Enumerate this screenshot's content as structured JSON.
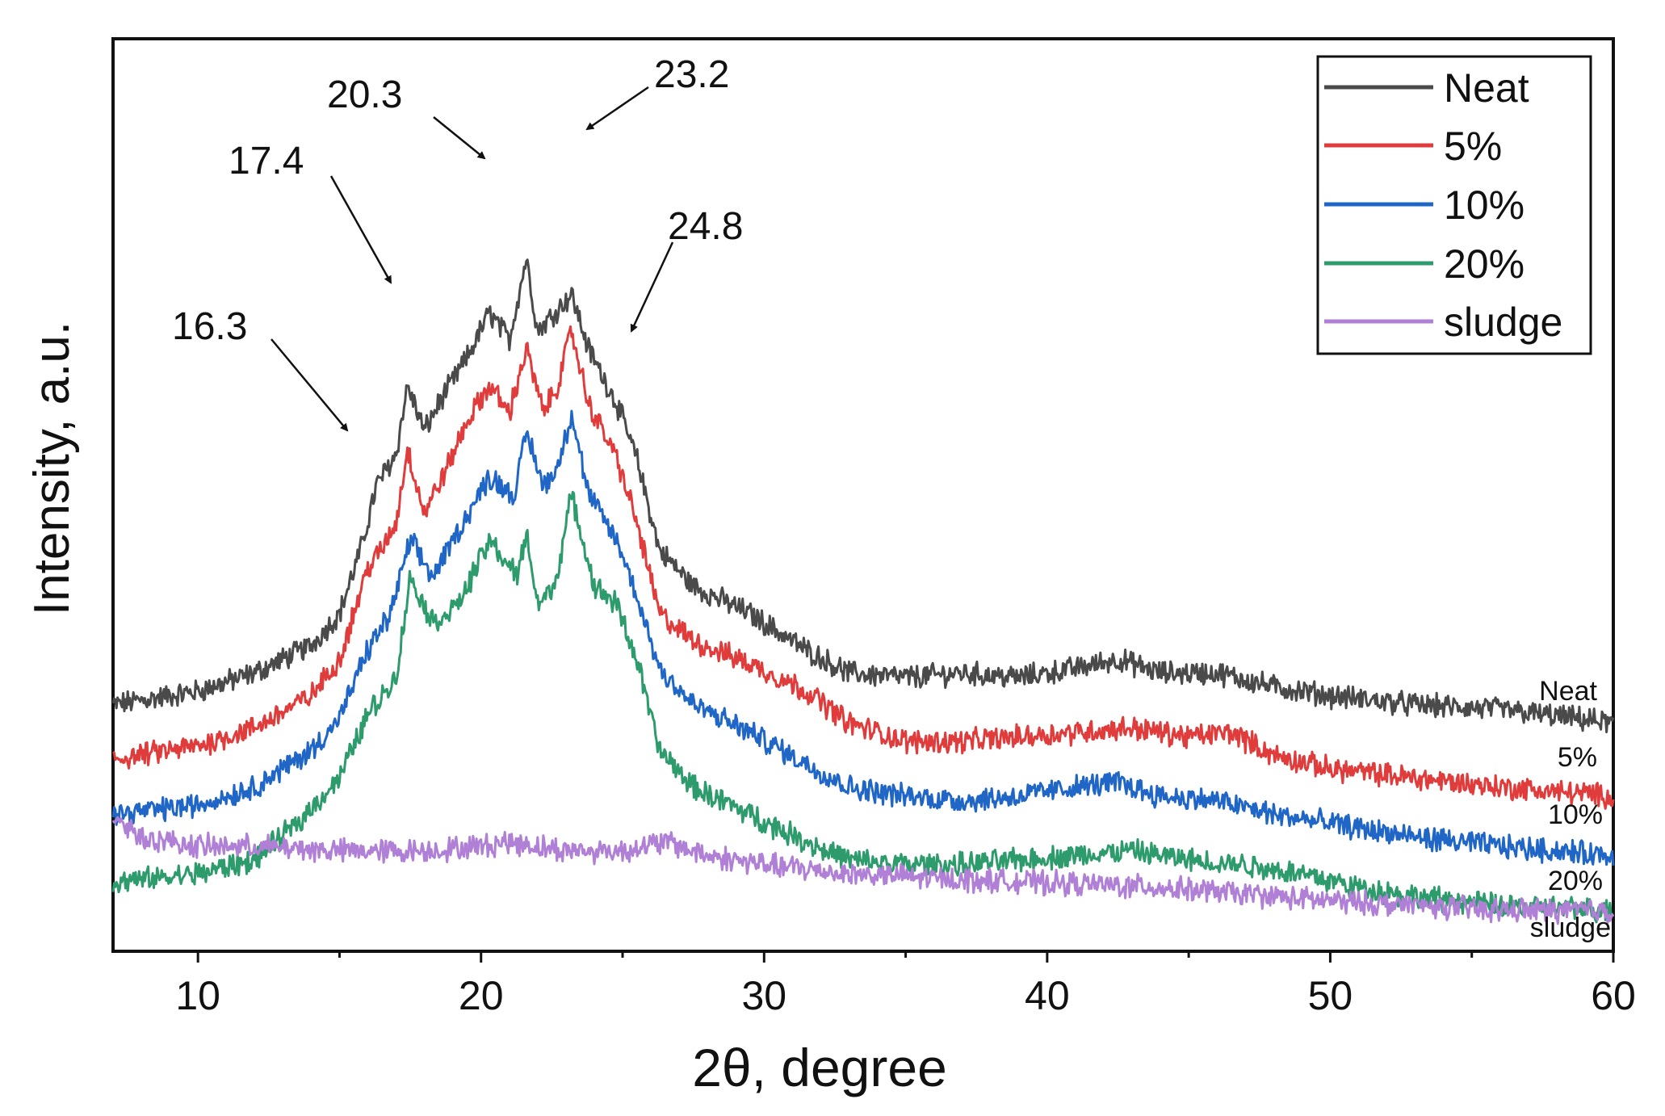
{
  "chart_data": {
    "type": "line",
    "title": "",
    "xlabel": "2θ, degree",
    "ylabel": "Intensity, a.u.",
    "xlim": [
      7,
      60
    ],
    "ylim": [
      0,
      100
    ],
    "x_ticks": [
      10,
      20,
      30,
      40,
      50,
      60
    ],
    "x_tick_labels": [
      "10",
      "20",
      "30",
      "40",
      "50",
      "60"
    ],
    "y_ticks_shown": false,
    "grid": false,
    "legend_position": "top-right",
    "series": [
      {
        "name": "Neat",
        "end_label": "Neat",
        "color": "#4a4a4a",
        "points": [
          [
            7,
            27
          ],
          [
            10,
            28.5
          ],
          [
            12,
            30.5
          ],
          [
            14,
            33.5
          ],
          [
            15,
            37
          ],
          [
            15.8,
            44.5
          ],
          [
            16.3,
            51
          ],
          [
            17,
            54.5
          ],
          [
            17.4,
            62
          ],
          [
            18,
            57
          ],
          [
            18.5,
            60
          ],
          [
            19.5,
            65
          ],
          [
            20.3,
            70
          ],
          [
            21,
            67
          ],
          [
            21.6,
            76
          ],
          [
            22,
            68
          ],
          [
            22.6,
            70
          ],
          [
            23.2,
            72
          ],
          [
            23.8,
            66
          ],
          [
            24.8,
            60
          ],
          [
            25.5,
            54
          ],
          [
            26.3,
            44
          ],
          [
            27.5,
            40
          ],
          [
            29.5,
            37
          ],
          [
            31.5,
            33
          ],
          [
            33,
            30.5
          ],
          [
            35,
            30
          ],
          [
            37,
            30.5
          ],
          [
            39,
            30
          ],
          [
            41,
            31
          ],
          [
            42.5,
            32
          ],
          [
            44,
            30.5
          ],
          [
            46,
            30.5
          ],
          [
            48,
            29
          ],
          [
            50,
            28
          ],
          [
            53,
            27
          ],
          [
            56,
            26.5
          ],
          [
            60,
            25
          ]
        ]
      },
      {
        "name": "5%",
        "end_label": "5%",
        "color": "#e03c3c",
        "points": [
          [
            7,
            21
          ],
          [
            10,
            22.5
          ],
          [
            12,
            24.5
          ],
          [
            14,
            28
          ],
          [
            15,
            32
          ],
          [
            16,
            42
          ],
          [
            16.5,
            44
          ],
          [
            17,
            47
          ],
          [
            17.4,
            55
          ],
          [
            18,
            48
          ],
          [
            18.8,
            53
          ],
          [
            19.5,
            58
          ],
          [
            20.3,
            62
          ],
          [
            21,
            59
          ],
          [
            21.6,
            66
          ],
          [
            22.2,
            59
          ],
          [
            22.7,
            62
          ],
          [
            23.2,
            68
          ],
          [
            23.8,
            60
          ],
          [
            24.8,
            54
          ],
          [
            25.5,
            47
          ],
          [
            26.3,
            37
          ],
          [
            27.5,
            34
          ],
          [
            29.5,
            31.5
          ],
          [
            31.5,
            28.5
          ],
          [
            33,
            25
          ],
          [
            35,
            23
          ],
          [
            37,
            23
          ],
          [
            39,
            23.5
          ],
          [
            41,
            24
          ],
          [
            43,
            24.5
          ],
          [
            45,
            23.5
          ],
          [
            46.5,
            24
          ],
          [
            48,
            21.5
          ],
          [
            50,
            20
          ],
          [
            53,
            19
          ],
          [
            56,
            18
          ],
          [
            60,
            17
          ]
        ]
      },
      {
        "name": "10%",
        "end_label": "10%",
        "color": "#1f66c7",
        "points": [
          [
            7,
            15
          ],
          [
            10,
            16
          ],
          [
            12,
            18
          ],
          [
            14,
            22
          ],
          [
            15,
            25.5
          ],
          [
            16,
            33
          ],
          [
            16.8,
            37
          ],
          [
            17.5,
            45
          ],
          [
            18.3,
            41
          ],
          [
            19,
            45
          ],
          [
            20.3,
            52
          ],
          [
            21.2,
            50
          ],
          [
            21.6,
            57
          ],
          [
            22.2,
            51
          ],
          [
            22.7,
            53
          ],
          [
            23.2,
            59
          ],
          [
            23.8,
            50
          ],
          [
            24.8,
            45
          ],
          [
            25.5,
            39
          ],
          [
            26.3,
            31
          ],
          [
            27.5,
            27
          ],
          [
            29.5,
            24
          ],
          [
            31.5,
            20.5
          ],
          [
            33,
            18
          ],
          [
            35,
            17
          ],
          [
            37,
            16.5
          ],
          [
            39,
            17
          ],
          [
            41,
            18
          ],
          [
            42.5,
            18.5
          ],
          [
            44,
            17
          ],
          [
            46,
            16.5
          ],
          [
            48,
            15
          ],
          [
            50,
            14
          ],
          [
            53,
            12.5
          ],
          [
            56,
            11.5
          ],
          [
            60,
            10.5
          ]
        ]
      },
      {
        "name": "20%",
        "end_label": "20%",
        "color": "#2d9b6b",
        "points": [
          [
            7,
            7.5
          ],
          [
            10,
            8.5
          ],
          [
            12,
            10
          ],
          [
            13.5,
            14
          ],
          [
            15,
            19
          ],
          [
            16,
            26
          ],
          [
            17,
            30
          ],
          [
            17.5,
            41
          ],
          [
            18.3,
            36
          ],
          [
            19.2,
            38
          ],
          [
            20.3,
            45
          ],
          [
            21.3,
            41
          ],
          [
            21.6,
            46
          ],
          [
            22,
            38
          ],
          [
            22.6,
            40
          ],
          [
            23.2,
            50
          ],
          [
            24,
            40
          ],
          [
            24.8,
            38
          ],
          [
            25.5,
            32
          ],
          [
            26.3,
            22
          ],
          [
            27.5,
            18
          ],
          [
            29.5,
            15
          ],
          [
            31.5,
            12
          ],
          [
            33,
            10
          ],
          [
            35,
            9.5
          ],
          [
            37,
            9.5
          ],
          [
            39,
            10
          ],
          [
            41,
            10.5
          ],
          [
            43,
            11
          ],
          [
            45,
            10
          ],
          [
            47,
            9.5
          ],
          [
            49,
            8.5
          ],
          [
            51,
            7
          ],
          [
            53,
            6
          ],
          [
            56,
            5
          ],
          [
            60,
            4.5
          ]
        ]
      },
      {
        "name": "sludge",
        "end_label": "sludge",
        "color": "#b07fd6",
        "points": [
          [
            7,
            15
          ],
          [
            8,
            12.5
          ],
          [
            10,
            11.5
          ],
          [
            12,
            11.5
          ],
          [
            15,
            11
          ],
          [
            18,
            11
          ],
          [
            20,
            11.5
          ],
          [
            21,
            12
          ],
          [
            23,
            11
          ],
          [
            25,
            11
          ],
          [
            26.5,
            12
          ],
          [
            28,
            10.5
          ],
          [
            30,
            9.5
          ],
          [
            33,
            8.5
          ],
          [
            36,
            8
          ],
          [
            40,
            7.5
          ],
          [
            44,
            7
          ],
          [
            48,
            6
          ],
          [
            50,
            5.5
          ],
          [
            53,
            5
          ],
          [
            56,
            4.5
          ],
          [
            60,
            4.5
          ]
        ]
      }
    ],
    "annotations": [
      {
        "text": "16.3",
        "x": 16.3
      },
      {
        "text": "17.4",
        "x": 17.4
      },
      {
        "text": "20.3",
        "x": 20.3
      },
      {
        "text": "23.2",
        "x": 23.2
      },
      {
        "text": "24.8",
        "x": 24.8
      }
    ]
  }
}
